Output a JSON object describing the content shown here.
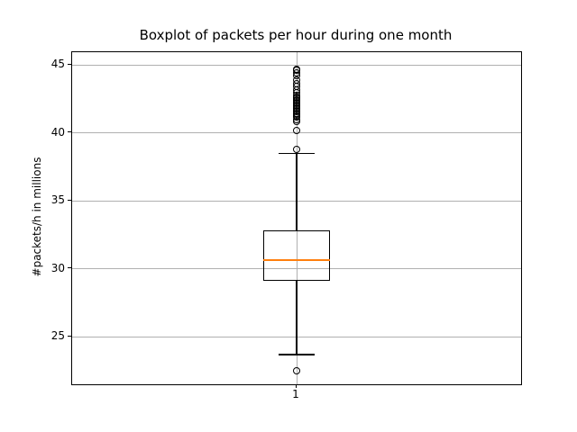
{
  "chart_data": {
    "type": "boxplot",
    "title": "Boxplot of packets per hour during one month",
    "xlabel": "",
    "ylabel": "#packets/h in millions",
    "categories": [
      "1"
    ],
    "ylim": [
      21.5,
      45.95
    ],
    "yticks": [
      25,
      30,
      35,
      40,
      45
    ],
    "grid": true,
    "legend": "none",
    "colors": {
      "median": "#ff7f0e",
      "box": "#000000",
      "grid": "#b0b0b0",
      "background": "#ffffff"
    },
    "series": [
      {
        "name": "1",
        "q1": 29.1,
        "median": 30.65,
        "q3": 32.8,
        "whisker_low": 23.7,
        "whisker_high": 38.5,
        "outliers": [
          22.5,
          38.8,
          40.2,
          40.85,
          41.0,
          41.15,
          41.25,
          41.35,
          41.45,
          41.55,
          41.65,
          41.75,
          41.85,
          41.95,
          42.05,
          42.15,
          42.25,
          42.35,
          42.45,
          42.55,
          42.65,
          42.8,
          43.0,
          43.2,
          43.4,
          43.65,
          43.9,
          44.2,
          44.45,
          44.6,
          44.7
        ]
      }
    ]
  }
}
